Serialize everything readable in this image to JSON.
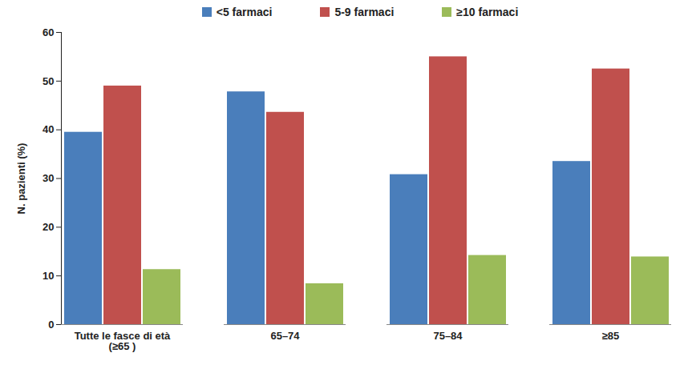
{
  "chart_data": {
    "type": "bar",
    "categories": [
      "Tutte le fasce di età\n(≥65 )",
      "65–74",
      "75–84",
      "≥85"
    ],
    "series": [
      {
        "name": "<5 farmaci",
        "color": "#4a7ebb",
        "values": [
          39.5,
          47.8,
          30.8,
          33.5
        ]
      },
      {
        "name": "5-9 farmaci",
        "color": "#c0504d",
        "values": [
          49.0,
          43.6,
          55.0,
          52.5
        ]
      },
      {
        "name": "≥10 farmaci",
        "color": "#9bbb59",
        "values": [
          11.3,
          8.4,
          14.2,
          13.9
        ]
      }
    ],
    "y_label": "N. pazienti (%)",
    "ylim": [
      0,
      60
    ],
    "yticks": [
      0,
      10,
      20,
      30,
      40,
      50,
      60
    ],
    "grid": false,
    "legend": "top"
  }
}
